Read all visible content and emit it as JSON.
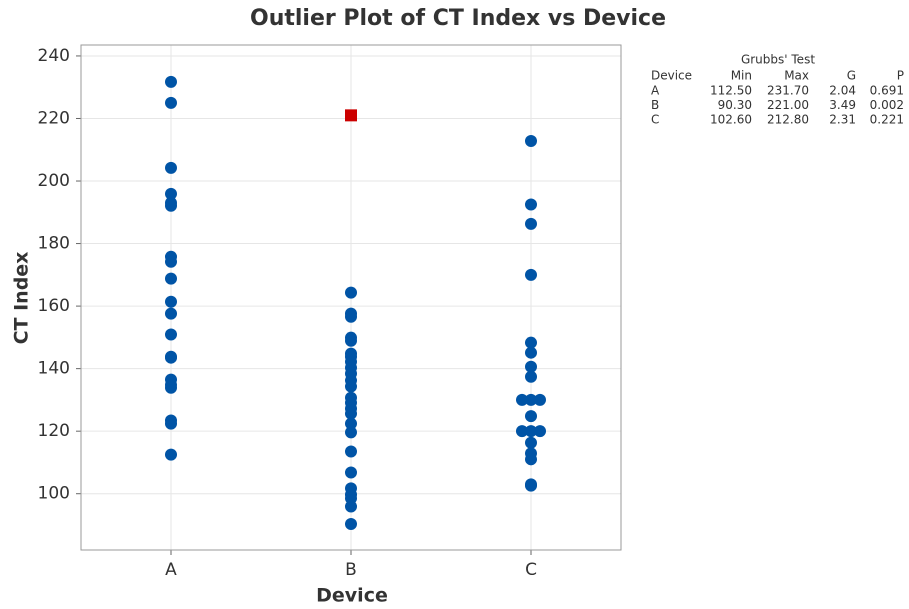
{
  "chart_data": {
    "type": "outlier",
    "title": "Outlier Plot of CT Index vs Device",
    "x_label": "Device",
    "y_label": "CT Index",
    "categories": [
      "A",
      "B",
      "C"
    ],
    "series": [
      {
        "color": "#0054a6",
        "marker": "circle",
        "values": [
          [
            231.7,
            225.0,
            204.2,
            195.9,
            193.0,
            192.1,
            175.8,
            174.2,
            168.8,
            161.4,
            157.6,
            150.9,
            143.8,
            143.5,
            136.5,
            134.9,
            133.9,
            123.4,
            122.4,
            112.5
          ],
          [
            164.3,
            157.6,
            156.6,
            149.9,
            148.9,
            144.8,
            143.8,
            142.2,
            140.3,
            138.4,
            136.2,
            134.3,
            130.7,
            129.1,
            127.2,
            125.6,
            122.4,
            119.6,
            113.5,
            106.8,
            101.7,
            99.7,
            98.5,
            95.9,
            90.3
          ],
          [
            212.8,
            192.5,
            186.3,
            170.0,
            148.3,
            145.1,
            140.6,
            137.4,
            130.0,
            130.0,
            130.0,
            124.8,
            120.0,
            120.0,
            120.0,
            116.3,
            112.9,
            111.0,
            103.0,
            102.6
          ]
        ]
      },
      {
        "color": "#cc0000",
        "marker": "square",
        "values": [
          [],
          [
            221.0
          ],
          []
        ]
      }
    ],
    "ylim": [
      82,
      243.5
    ],
    "yticks": [
      100,
      120,
      140,
      160,
      180,
      200,
      220,
      240
    ],
    "grid": true,
    "table": {
      "title": "Grubbs' Test",
      "columns": [
        "Device",
        "Min",
        "Max",
        "G",
        "P"
      ],
      "rows": [
        [
          "A",
          "112.50",
          "231.70",
          "2.04",
          "0.691"
        ],
        [
          "B",
          "90.30",
          "221.00",
          "3.49",
          "0.002"
        ],
        [
          "C",
          "102.60",
          "212.80",
          "2.31",
          "0.221"
        ]
      ]
    }
  }
}
